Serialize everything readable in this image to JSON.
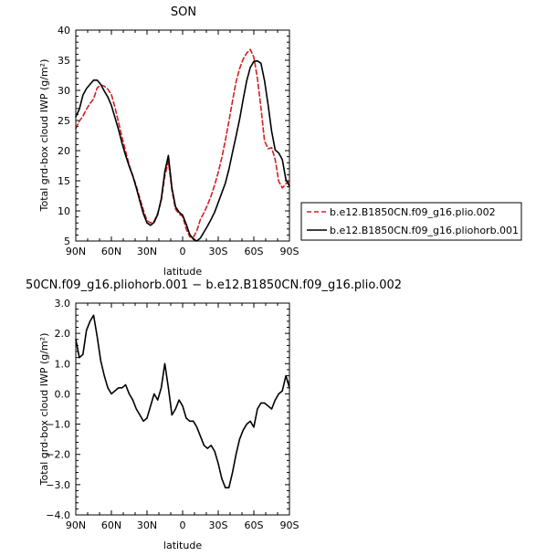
{
  "chart_data": [
    {
      "type": "line",
      "title": "SON",
      "xlabel": "latitude",
      "ylabel": "Total grd-box cloud IWP (g/m²)",
      "x_ticks": [
        "90N",
        "60N",
        "30N",
        "0",
        "30S",
        "60S",
        "90S"
      ],
      "xlim": [
        90,
        -90
      ],
      "ylim": [
        5,
        40
      ],
      "y_ticks": [
        "5",
        "10",
        "15",
        "20",
        "25",
        "30",
        "35",
        "40"
      ],
      "legend_position": "right",
      "series": [
        {
          "name": "b.e12.B1850CN.f09_g16.plio.002",
          "color": "#d42020",
          "style": "dashed",
          "x": [
            90,
            87,
            84,
            81,
            78,
            75,
            72,
            69,
            66,
            63,
            60,
            57,
            54,
            51,
            48,
            45,
            42,
            39,
            36,
            33,
            30,
            27,
            24,
            21,
            18,
            15,
            12,
            9,
            6,
            3,
            0,
            -3,
            -6,
            -9,
            -12,
            -15,
            -18,
            -21,
            -24,
            -27,
            -30,
            -33,
            -36,
            -39,
            -42,
            -45,
            -48,
            -51,
            -54,
            -57,
            -60,
            -63,
            -66,
            -69,
            -72,
            -75,
            -78,
            -81,
            -84,
            -87,
            -90
          ],
          "values": [
            23.7,
            24.9,
            25.7,
            26.9,
            27.8,
            28.6,
            30.4,
            30.9,
            30.7,
            30.2,
            29.3,
            27.2,
            24.7,
            22.2,
            19.9,
            17.6,
            15.9,
            14.1,
            12.1,
            10.1,
            8.4,
            8.0,
            8.3,
            9.6,
            11.7,
            15.8,
            18.2,
            13.4,
            10.3,
            9.5,
            9.1,
            7.0,
            5.7,
            5.6,
            6.7,
            8.6,
            9.7,
            11.0,
            12.5,
            14.3,
            16.4,
            18.8,
            21.7,
            24.9,
            28.2,
            31.4,
            33.6,
            35.2,
            36.2,
            36.8,
            35.5,
            32.0,
            27.1,
            21.6,
            20.3,
            20.5,
            18.5,
            14.9,
            13.8,
            14.5,
            15.0
          ]
        },
        {
          "name": "b.e12.B1850CN.f09_g16.pliohorb.001",
          "color": "#000000",
          "style": "solid",
          "x": [
            90,
            87,
            84,
            81,
            78,
            75,
            72,
            69,
            66,
            63,
            60,
            57,
            54,
            51,
            48,
            45,
            42,
            39,
            36,
            33,
            30,
            27,
            24,
            21,
            18,
            15,
            12,
            9,
            6,
            3,
            0,
            -3,
            -6,
            -9,
            -12,
            -15,
            -18,
            -21,
            -24,
            -27,
            -30,
            -33,
            -36,
            -39,
            -42,
            -45,
            -48,
            -51,
            -54,
            -57,
            -60,
            -63,
            -66,
            -69,
            -72,
            -75,
            -78,
            -81,
            -84,
            -87,
            -90
          ],
          "values": [
            25.6,
            26.9,
            29.2,
            30.3,
            31.0,
            31.7,
            31.7,
            31.0,
            29.9,
            28.9,
            27.5,
            25.5,
            23.5,
            21.2,
            19.2,
            17.4,
            15.8,
            13.8,
            11.6,
            9.5,
            8.0,
            7.6,
            8.1,
            9.4,
            12.0,
            16.5,
            19.2,
            13.8,
            10.7,
            9.8,
            9.3,
            7.8,
            6.1,
            5.3,
            5.0,
            5.5,
            6.5,
            7.5,
            8.6,
            9.8,
            11.4,
            13.0,
            14.6,
            16.9,
            19.7,
            22.4,
            25.2,
            28.5,
            31.6,
            33.8,
            34.8,
            34.9,
            34.5,
            31.6,
            27.6,
            23.2,
            20.1,
            19.6,
            18.5,
            15.2,
            14.1
          ]
        }
      ]
    },
    {
      "type": "line",
      "title": "50CN.f09_g16.pliohorb.001 − b.e12.B1850CN.f09_g16.plio.002",
      "xlabel": "latitude",
      "ylabel": "Total grd-box cloud IWP (g/m²)",
      "x_ticks": [
        "90N",
        "60N",
        "30N",
        "0",
        "30S",
        "60S",
        "90S"
      ],
      "xlim": [
        90,
        -90
      ],
      "ylim": [
        -4,
        3
      ],
      "y_ticks": [
        "−4.0",
        "−3.0",
        "−2.0",
        "−1.0",
        "0.0",
        "1.0",
        "2.0",
        "3.0"
      ],
      "series": [
        {
          "color": "#000000",
          "style": "solid",
          "x": [
            90,
            87,
            84,
            81,
            78,
            75,
            72,
            69,
            66,
            63,
            60,
            57,
            54,
            51,
            48,
            45,
            42,
            39,
            36,
            33,
            30,
            27,
            24,
            21,
            18,
            15,
            12,
            9,
            6,
            3,
            0,
            -3,
            -6,
            -9,
            -12,
            -15,
            -18,
            -21,
            -24,
            -27,
            -30,
            -33,
            -36,
            -39,
            -42,
            -45,
            -48,
            -51,
            -54,
            -57,
            -60,
            -63,
            -66,
            -69,
            -72,
            -75,
            -78,
            -81,
            -84,
            -87,
            -90
          ],
          "values": [
            1.8,
            1.2,
            1.3,
            2.1,
            2.4,
            2.6,
            1.9,
            1.1,
            0.6,
            0.2,
            0.0,
            0.1,
            0.2,
            0.2,
            0.3,
            0.0,
            -0.2,
            -0.5,
            -0.7,
            -0.9,
            -0.8,
            -0.4,
            0.0,
            -0.2,
            0.2,
            1.0,
            0.2,
            -0.7,
            -0.5,
            -0.2,
            -0.4,
            -0.8,
            -0.9,
            -0.9,
            -1.1,
            -1.4,
            -1.7,
            -1.8,
            -1.7,
            -1.9,
            -2.3,
            -2.8,
            -3.1,
            -3.1,
            -2.6,
            -2.0,
            -1.5,
            -1.2,
            -1.0,
            -0.9,
            -1.1,
            -0.5,
            -0.3,
            -0.3,
            -0.4,
            -0.5,
            -0.2,
            0.0,
            0.1,
            0.6,
            0.2
          ]
        }
      ]
    }
  ]
}
